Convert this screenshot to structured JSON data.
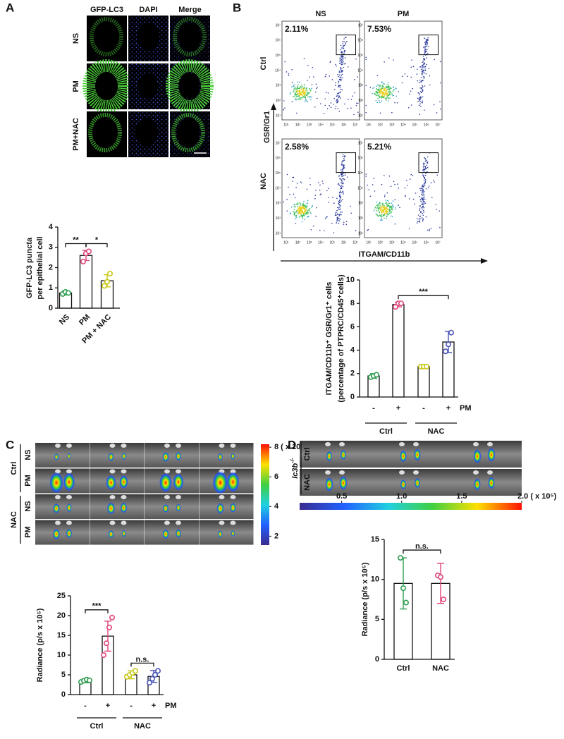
{
  "panel_letters": [
    "A",
    "B",
    "C",
    "D"
  ],
  "panel_a": {
    "columns": [
      "GFP-LC3",
      "DAPI",
      "Merge"
    ],
    "rows": [
      "NS",
      "PM",
      "PM+NAC"
    ]
  },
  "flow": {
    "columns": [
      "NS",
      "PM"
    ],
    "rows": [
      "Ctrl",
      "NAC"
    ],
    "percentages": [
      [
        "2.11%",
        "7.53%"
      ],
      [
        "2.58%",
        "5.21%"
      ]
    ],
    "x_label": "ITGAM/CD11b",
    "y_label": "GSR/Gr1",
    "tick_labels": [
      "10¹",
      "10²",
      "10³",
      "10⁴",
      "10⁵",
      "10⁶",
      "10⁷"
    ]
  },
  "panel_c": {
    "rows": [
      "NS",
      "PM",
      "NS",
      "PM"
    ],
    "groups": [
      "Ctrl",
      "NAC"
    ],
    "colorbar": {
      "range": [
        1.4,
        8.2
      ],
      "ticks": [
        {
          "value": 8,
          "label": "8 ( x 10⁵ )"
        },
        6,
        4,
        2
      ]
    }
  },
  "panel_d": {
    "genotype": "lc3b",
    "genotype_sup": "-/-",
    "rows": [
      "Ctrl",
      "NAC"
    ],
    "colorbar": {
      "range": [
        0.15,
        2.0
      ],
      "ticks": [
        0.5,
        {
          "value": 1,
          "label": "1.0"
        },
        1.5,
        {
          "value": 2,
          "label": "2.0 ( x 10⁵)"
        }
      ]
    }
  },
  "chart_data": [
    {
      "type": "bar",
      "ylabel": [
        "GFP-LC3 puncta",
        "per epithelial cell"
      ],
      "categories": [
        "NS",
        "PM",
        "PM + NAC"
      ],
      "values": [
        0.75,
        2.6,
        1.35
      ],
      "errors": [
        0.1,
        0.25,
        0.3
      ],
      "points": [
        [
          0.7,
          0.8,
          0.75
        ],
        [
          2.3,
          2.7,
          2.8
        ],
        [
          1.1,
          1.3,
          1.7
        ]
      ],
      "colors": [
        "#2e9e4f",
        "#e0457b",
        "#c8c814"
      ],
      "ylim": [
        0,
        4
      ],
      "yticks": [
        0,
        1,
        2,
        3,
        4
      ],
      "annotations": [
        "**",
        "*"
      ]
    },
    {
      "type": "bar",
      "ylabel": [
        "ITGAM/CD11b⁺ GSR/Gr1⁺ cells",
        "(percentage of PTPRC/CD45⁺cells)"
      ],
      "categories": [
        "-",
        "+",
        "-",
        "+"
      ],
      "groups": [
        "Ctrl",
        "NAC"
      ],
      "factor": "PM",
      "values": [
        1.8,
        7.9,
        2.6,
        4.7
      ],
      "errors": [
        0.2,
        0.2,
        0.05,
        0.9
      ],
      "points": [
        [
          1.7,
          1.8,
          1.9
        ],
        [
          7.7,
          8.0,
          8.0
        ],
        [
          2.6,
          2.6,
          2.6
        ],
        [
          3.9,
          4.5,
          5.5
        ]
      ],
      "colors": [
        "#2e9e4f",
        "#e0457b",
        "#c8c814",
        "#4a55b5"
      ],
      "ylim": [
        0,
        10
      ],
      "yticks": [
        0,
        2,
        4,
        6,
        8,
        10
      ],
      "annotations": [
        "***"
      ]
    },
    {
      "type": "bar",
      "ylabel": [
        "Radiance (p/s x 10⁵)"
      ],
      "categories": [
        "-",
        "+",
        "-",
        "+"
      ],
      "groups": [
        "Ctrl",
        "NAC"
      ],
      "factor": "PM",
      "values": [
        3.5,
        14.8,
        5.0,
        4.6
      ],
      "errors": [
        0.5,
        3.8,
        1.0,
        1.5
      ],
      "points": [
        [
          3.2,
          3.5,
          3.8,
          3.6
        ],
        [
          10,
          13,
          17,
          19.5
        ],
        [
          4.5,
          5,
          5.5,
          6
        ],
        [
          3,
          4,
          5,
          6
        ]
      ],
      "colors": [
        "#2e9e4f",
        "#e0457b",
        "#c8c814",
        "#4a55b5"
      ],
      "ylim": [
        0,
        25
      ],
      "yticks": [
        0,
        5,
        10,
        15,
        20,
        25
      ],
      "annotations": [
        "***",
        "n.s."
      ]
    },
    {
      "type": "bar",
      "ylabel": [
        "Radiance (p/s x 10⁵)"
      ],
      "categories": [
        "Ctrl",
        "NAC"
      ],
      "values": [
        9.5,
        9.5
      ],
      "errors": [
        3.2,
        2.5
      ],
      "points": [
        [
          12.7,
          8.9,
          7.1
        ],
        [
          10.5,
          10.3,
          7.5
        ]
      ],
      "colors": [
        "#2e9e4f",
        "#e0457b"
      ],
      "ylim": [
        0,
        15
      ],
      "yticks": [
        0,
        5,
        10,
        15
      ],
      "annotations": [
        "n.s."
      ]
    }
  ]
}
